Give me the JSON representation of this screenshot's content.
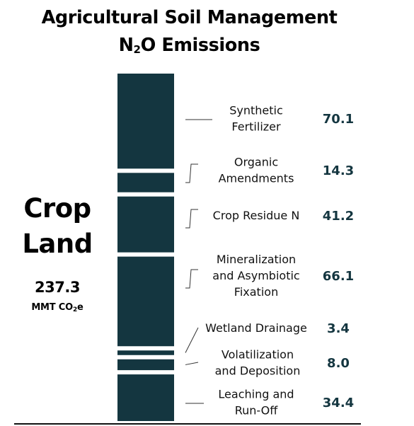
{
  "title": {
    "line1": "Agricultural Soil Management",
    "line2_pre": "N",
    "line2_sub": "2",
    "line2_post": "O Emissions"
  },
  "group": {
    "label_line1": "Crop",
    "label_line2": "Land",
    "total": "237.3",
    "unit_pre": "MMT CO",
    "unit_sub": "2",
    "unit_post": "e"
  },
  "colors": {
    "bar": "#143640",
    "value_text": "#143640"
  },
  "chart_data": {
    "type": "bar",
    "orientation": "stacked-vertical",
    "categories": [
      "Synthetic Fertilizer",
      "Organic Amendments",
      "Crop Residue N",
      "Mineralization and Asymbiotic Fixation",
      "Wetland Drainage",
      "Volatilization and Deposition",
      "Leaching and Run-Off"
    ],
    "label_lines": [
      [
        "Synthetic",
        "Fertilizer"
      ],
      [
        "Organic",
        "Amendments"
      ],
      [
        "Crop Residue N"
      ],
      [
        "Mineralization",
        "and Asymbiotic",
        "Fixation"
      ],
      [
        "Wetland Drainage"
      ],
      [
        "Volatilization",
        "and Deposition"
      ],
      [
        "Leaching and",
        "Run-Off"
      ]
    ],
    "values": [
      70.1,
      14.3,
      41.2,
      66.1,
      3.4,
      8.0,
      34.4
    ],
    "value_labels": [
      "70.1",
      "14.3",
      "41.2",
      "66.1",
      "3.4",
      "8.0",
      "34.4"
    ],
    "total": 237.3
  }
}
